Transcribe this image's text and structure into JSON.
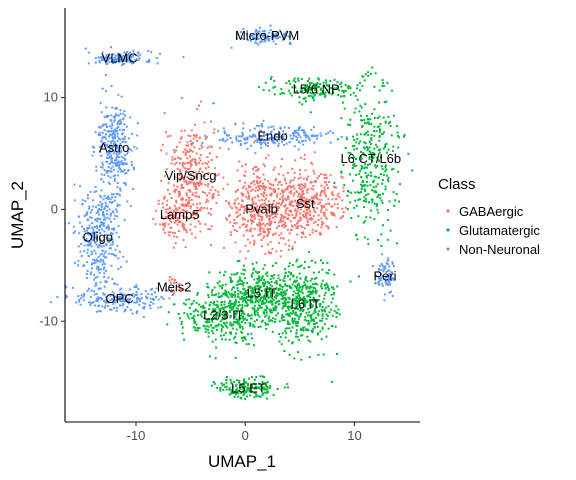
{
  "chart_data": {
    "type": "scatter",
    "xlabel": "UMAP_1",
    "ylabel": "UMAP_2",
    "xlim": [
      -16.5,
      16
    ],
    "ylim": [
      -19,
      18
    ],
    "x_ticks": [
      -10,
      0,
      10
    ],
    "y_ticks": [
      -10,
      0,
      10
    ],
    "grid": false,
    "legend": {
      "title": "Class",
      "placement": "right",
      "entries": [
        {
          "name": "GABAergic",
          "color": "#F8766D"
        },
        {
          "name": "Glutamatergic",
          "color": "#00BA38"
        },
        {
          "name": "Non-Neuronal",
          "color": "#619CFF"
        }
      ]
    },
    "clusters": [
      {
        "label": "VLMC",
        "class": "Non-Neuronal",
        "x": -11.5,
        "y": 13.5,
        "sx": 1.5,
        "sy": 0.3,
        "n": 140
      },
      {
        "label": "Micro-PVM",
        "class": "Non-Neuronal",
        "x": 2.0,
        "y": 15.5,
        "sx": 1.2,
        "sy": 0.3,
        "n": 100
      },
      {
        "label": "L5/6 NP",
        "class": "Glutamatergic",
        "x": 6.5,
        "y": 10.7,
        "sx": 2.2,
        "sy": 0.5,
        "n": 160
      },
      {
        "label": "Astro",
        "class": "Non-Neuronal",
        "x": -12.0,
        "y": 5.5,
        "sx": 0.8,
        "sy": 2.3,
        "n": 300
      },
      {
        "label": "Vip/Sncg",
        "class": "GABAergic",
        "x": -5.0,
        "y": 3.0,
        "sx": 1.2,
        "sy": 2.3,
        "n": 280
      },
      {
        "label": "Endo",
        "class": "Non-Neuronal",
        "x": 2.5,
        "y": 6.5,
        "sx": 2.5,
        "sy": 0.5,
        "n": 200
      },
      {
        "label": "L6 CT/L6b",
        "class": "Glutamatergic",
        "x": 11.5,
        "y": 4.5,
        "sx": 1.3,
        "sy": 3.5,
        "n": 320
      },
      {
        "label": "Lamp5",
        "class": "GABAergic",
        "x": -6.0,
        "y": -0.5,
        "sx": 1.0,
        "sy": 1.0,
        "n": 120
      },
      {
        "label": "Pvalb",
        "class": "GABAergic",
        "x": 1.5,
        "y": 0.0,
        "sx": 1.5,
        "sy": 1.8,
        "n": 400
      },
      {
        "label": "Sst",
        "class": "GABAergic",
        "x": 5.5,
        "y": 0.5,
        "sx": 1.5,
        "sy": 1.6,
        "n": 350
      },
      {
        "label": "Oligo",
        "class": "Non-Neuronal",
        "x": -13.5,
        "y": -2.5,
        "sx": 1.0,
        "sy": 2.3,
        "n": 300
      },
      {
        "label": "Peri",
        "class": "Non-Neuronal",
        "x": 12.8,
        "y": -6.0,
        "sx": 0.5,
        "sy": 0.7,
        "n": 80
      },
      {
        "label": "Meis2",
        "class": "GABAergic",
        "x": -6.5,
        "y": -7.0,
        "sx": 0.3,
        "sy": 0.4,
        "n": 20
      },
      {
        "label": "OPC",
        "class": "Non-Neuronal",
        "x": -11.5,
        "y": -8.0,
        "sx": 2.0,
        "sy": 0.6,
        "n": 200
      },
      {
        "label": "L5 IT",
        "class": "Glutamatergic",
        "x": 1.5,
        "y": -7.5,
        "sx": 2.0,
        "sy": 1.2,
        "n": 420
      },
      {
        "label": "L6 IT",
        "class": "Glutamatergic",
        "x": 5.5,
        "y": -8.5,
        "sx": 1.4,
        "sy": 1.8,
        "n": 380
      },
      {
        "label": "L2/3 IT",
        "class": "Glutamatergic",
        "x": -2.0,
        "y": -9.5,
        "sx": 2.0,
        "sy": 1.2,
        "n": 320
      },
      {
        "label": "L5 ET",
        "class": "Glutamatergic",
        "x": 0.3,
        "y": -16.0,
        "sx": 1.4,
        "sy": 0.5,
        "n": 150
      }
    ]
  }
}
